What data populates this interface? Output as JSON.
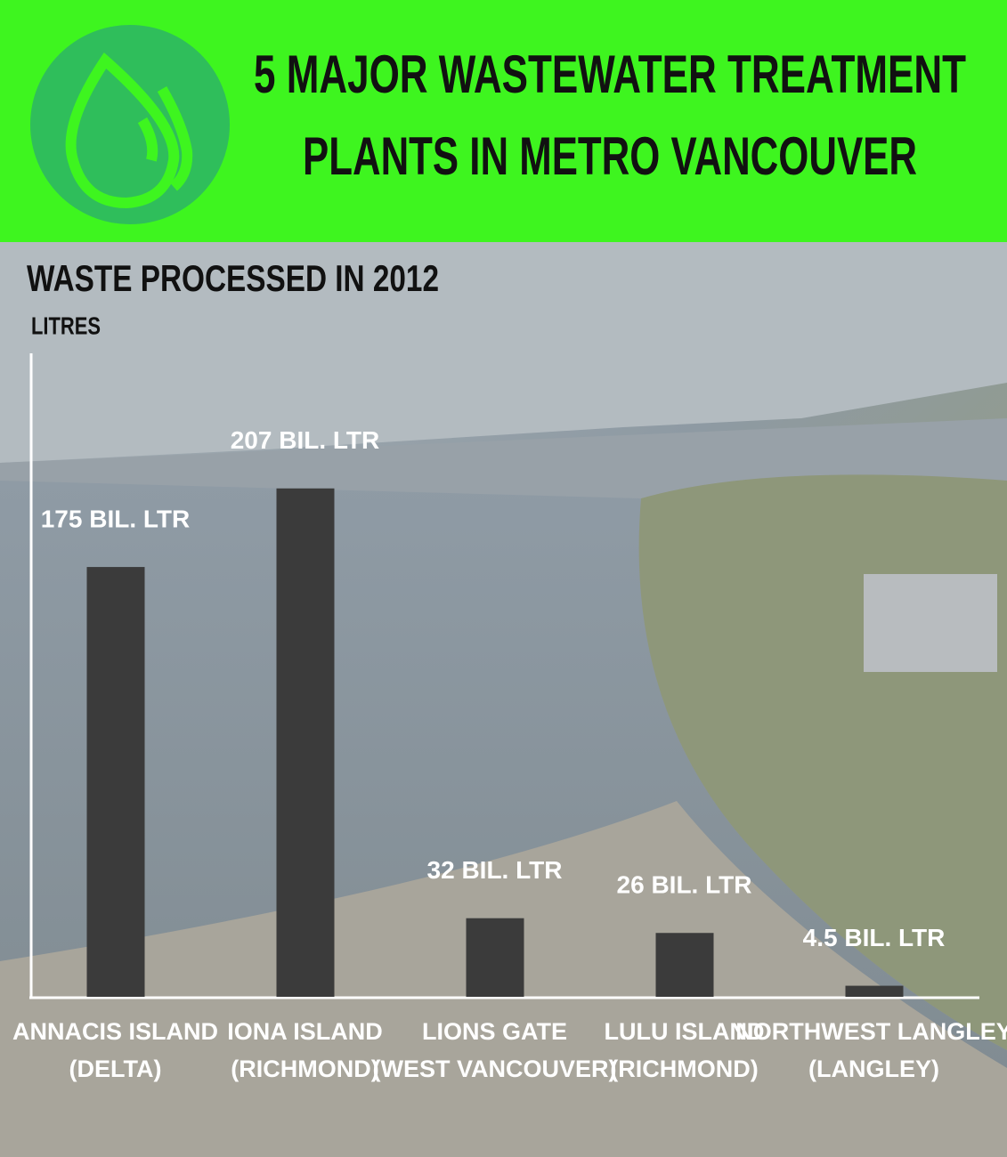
{
  "chart_data": {
    "type": "bar",
    "title": [
      "5 MAJOR WASTEWATER TREATMENT",
      "PLANTS IN METRO VANCOUVER"
    ],
    "subtitle": "WASTE PROCESSED IN 2012",
    "y_label": "LITRES",
    "categories": [
      [
        "ANNACIS ISLAND",
        "(DELTA)"
      ],
      [
        "IONA ISLAND",
        "(RICHMOND)"
      ],
      [
        "LIONS GATE",
        "(WEST VANCOUVER)"
      ],
      [
        "LULU ISLAND",
        "(RICHMOND)"
      ],
      [
        "NORTHWEST LANGLEY",
        "(LANGLEY)"
      ]
    ],
    "values": [
      175,
      207,
      32,
      26,
      4.5
    ],
    "value_labels": [
      "175 BIL. LTR",
      "207 BIL. LTR",
      "32 BIL. LTR",
      "26 BIL. LTR",
      "4.5 BIL. LTR"
    ],
    "color": "#3b3b3b",
    "ylim": [
      0,
      262
    ]
  }
}
